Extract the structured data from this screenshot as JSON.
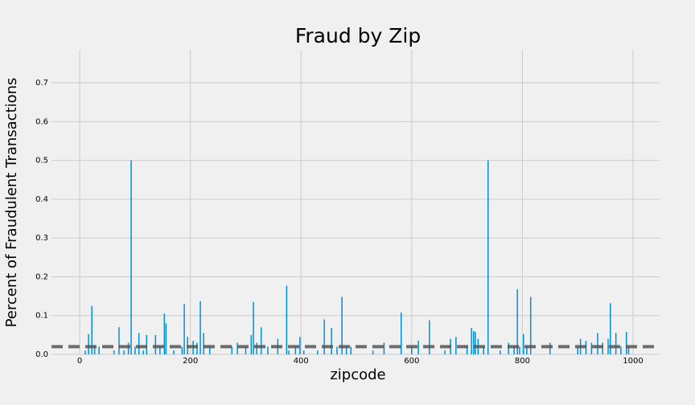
{
  "chart_data": {
    "type": "bar",
    "title": "Fraud by Zip",
    "xlabel": "zipcode",
    "ylabel": "Percent of Fraudulent Transactions",
    "x": [
      10,
      16,
      22,
      27,
      35,
      62,
      71,
      80,
      88,
      93,
      100,
      107,
      115,
      121,
      137,
      145,
      153,
      156,
      170,
      185,
      189,
      195,
      205,
      212,
      218,
      224,
      235,
      275,
      285,
      300,
      310,
      314,
      320,
      328,
      340,
      358,
      374,
      378,
      390,
      398,
      405,
      430,
      442,
      455,
      465,
      474,
      482,
      490,
      530,
      550,
      581,
      600,
      612,
      632,
      660,
      670,
      680,
      700,
      708,
      712,
      715,
      720,
      730,
      738,
      760,
      775,
      785,
      791,
      795,
      802,
      808,
      815,
      850,
      900,
      905,
      915,
      925,
      936,
      945,
      955,
      959,
      969,
      978,
      988,
      992
    ],
    "values": [
      0.01,
      0.052,
      0.125,
      0.02,
      0.02,
      0.01,
      0.07,
      0.01,
      0.03,
      0.5,
      0.02,
      0.055,
      0.01,
      0.05,
      0.05,
      0.02,
      0.105,
      0.08,
      0.01,
      0.02,
      0.13,
      0.045,
      0.035,
      0.03,
      0.137,
      0.055,
      0.02,
      0.02,
      0.03,
      0.02,
      0.05,
      0.135,
      0.03,
      0.07,
      0.02,
      0.04,
      0.177,
      0.01,
      0.02,
      0.045,
      0.01,
      0.01,
      0.09,
      0.068,
      0.02,
      0.148,
      0.02,
      0.02,
      0.01,
      0.03,
      0.108,
      0.02,
      0.035,
      0.088,
      0.01,
      0.04,
      0.045,
      0.02,
      0.068,
      0.06,
      0.058,
      0.04,
      0.02,
      0.5,
      0.01,
      0.03,
      0.02,
      0.168,
      0.02,
      0.052,
      0.02,
      0.148,
      0.03,
      0.02,
      0.04,
      0.035,
      0.03,
      0.055,
      0.03,
      0.04,
      0.132,
      0.055,
      0.02,
      0.058,
      0.02
    ],
    "color": "#008fd5",
    "hline": 0.02,
    "hline_color": "#555555",
    "xlim": [
      -51,
      1048
    ],
    "xticks": [
      0,
      200,
      400,
      600,
      800,
      1000
    ],
    "ylim": [
      0,
      0.785
    ],
    "yticks": [
      {
        "value": 0,
        "label": "0.0"
      },
      0.1,
      0.2,
      0.3,
      0.4,
      0.5,
      0.6,
      0.7
    ],
    "grid": true
  }
}
